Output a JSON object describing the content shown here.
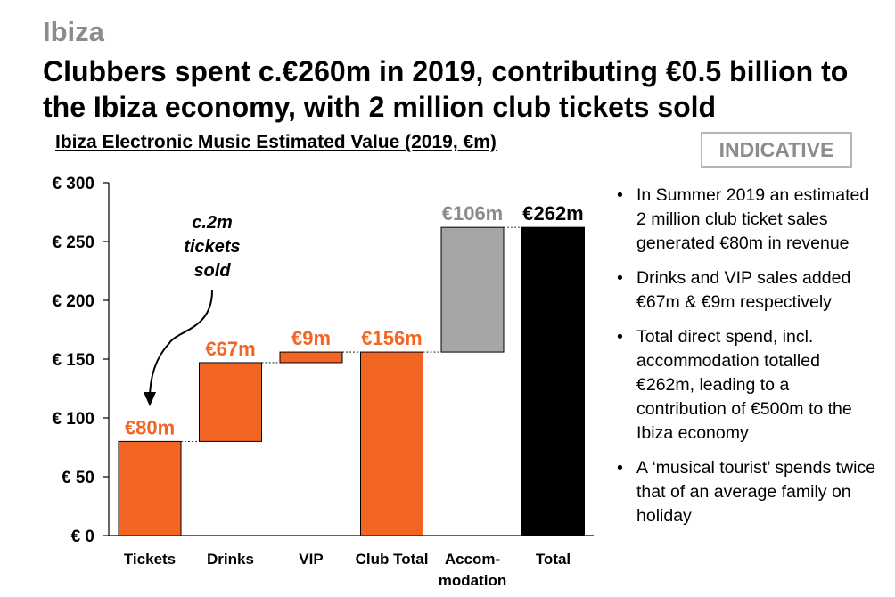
{
  "section": "Ibiza",
  "headline": "Clubbers spent c.€260m in 2019, contributing €0.5 billion to the Ibiza economy, with 2 million club tickets sold",
  "badge": "INDICATIVE",
  "bullets": [
    "In Summer 2019 an estimated 2 million club ticket sales generated €80m in revenue",
    "Drinks and VIP sales added €67m & €9m respectively",
    "Total direct spend, incl. accommodation totalled €262m, leading to a contribution of €500m to the Ibiza economy",
    "A ‘musical tourist’ spends twice that of an average family on holiday"
  ],
  "colors": {
    "orange": "#f26522",
    "gray": "#a6a6a6",
    "black": "#000000",
    "gray_label": "#8c8c8c"
  },
  "chart_data": {
    "type": "bar",
    "subtype": "waterfall",
    "title": "Ibiza Electronic Music Estimated Value (2019, €m)",
    "categories": [
      "Tickets",
      "Drinks",
      "VIP",
      "Club Total",
      "Accom-\nmodation",
      "Total"
    ],
    "series": [
      {
        "name": "Tickets",
        "base": 0,
        "value": 80,
        "label": "€80m",
        "color": "#f26522",
        "label_color": "#f26522"
      },
      {
        "name": "Drinks",
        "base": 80,
        "value": 67,
        "label": "€67m",
        "color": "#f26522",
        "label_color": "#f26522"
      },
      {
        "name": "VIP",
        "base": 147,
        "value": 9,
        "label": "€9m",
        "color": "#f26522",
        "label_color": "#f26522"
      },
      {
        "name": "Club Total",
        "base": 0,
        "value": 156,
        "label": "€156m",
        "color": "#f26522",
        "label_color": "#f26522"
      },
      {
        "name": "Accommodation",
        "base": 156,
        "value": 106,
        "label": "€106m",
        "color": "#a6a6a6",
        "label_color": "#8c8c8c"
      },
      {
        "name": "Total",
        "base": 0,
        "value": 262,
        "label": "€262m",
        "color": "#000000",
        "label_color": "#000000"
      }
    ],
    "y_ticks": [
      "€ 0",
      "€ 50",
      "€ 100",
      "€ 150",
      "€ 200",
      "€ 250",
      "€ 300"
    ],
    "ylim": [
      0,
      300
    ],
    "annotation": "c.2m\ntickets\nsold",
    "xlabel": "",
    "ylabel": ""
  }
}
